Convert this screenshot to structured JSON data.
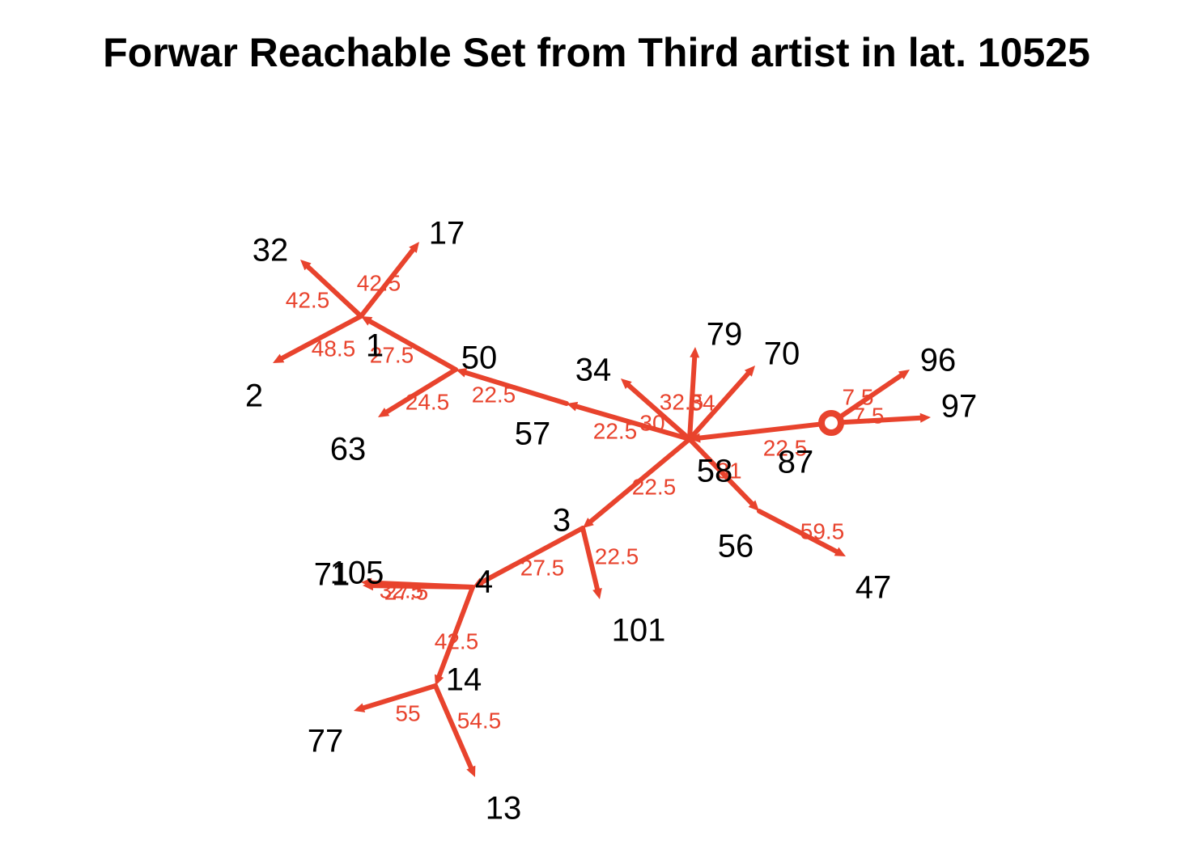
{
  "title": "Forwar Reachable Set from Third artist in lat. 10525",
  "colors": {
    "edge": "#E8432D",
    "edge_label": "#E8432D",
    "node_label": "#000000",
    "background": "#ffffff"
  },
  "nodes": [
    {
      "id": "87",
      "label": "87",
      "root": true
    },
    {
      "id": "96",
      "label": "96"
    },
    {
      "id": "97",
      "label": "97"
    },
    {
      "id": "58",
      "label": "58"
    },
    {
      "id": "79",
      "label": "79"
    },
    {
      "id": "70",
      "label": "70"
    },
    {
      "id": "34",
      "label": "34"
    },
    {
      "id": "57",
      "label": "57"
    },
    {
      "id": "50",
      "label": "50"
    },
    {
      "id": "1",
      "label": "1"
    },
    {
      "id": "63",
      "label": "63"
    },
    {
      "id": "32",
      "label": "32"
    },
    {
      "id": "17",
      "label": "17"
    },
    {
      "id": "2",
      "label": "2"
    },
    {
      "id": "3",
      "label": "3"
    },
    {
      "id": "101",
      "label": "101"
    },
    {
      "id": "4",
      "label": "4"
    },
    {
      "id": "71",
      "label": "71"
    },
    {
      "id": "105",
      "label": "105"
    },
    {
      "id": "14",
      "label": "14"
    },
    {
      "id": "77",
      "label": "77"
    },
    {
      "id": "13",
      "label": "13"
    },
    {
      "id": "56",
      "label": "56"
    },
    {
      "id": "47",
      "label": "47"
    }
  ],
  "edges": [
    {
      "from": "87",
      "to": "96",
      "label": "7.5"
    },
    {
      "from": "87",
      "to": "97",
      "label": "7.5"
    },
    {
      "from": "87",
      "to": "58",
      "label": "22.5"
    },
    {
      "from": "58",
      "to": "79",
      "label": "32.5"
    },
    {
      "from": "58",
      "to": "70",
      "label": "34"
    },
    {
      "from": "58",
      "to": "34",
      "label": "30"
    },
    {
      "from": "58",
      "to": "57",
      "label": "22.5"
    },
    {
      "from": "57",
      "to": "50",
      "label": "22.5"
    },
    {
      "from": "50",
      "to": "1",
      "label": "27.5"
    },
    {
      "from": "50",
      "to": "63",
      "label": "24.5"
    },
    {
      "from": "1",
      "to": "32",
      "label": "42.5"
    },
    {
      "from": "1",
      "to": "17",
      "label": "42.5"
    },
    {
      "from": "1",
      "to": "2",
      "label": "48.5"
    },
    {
      "from": "58",
      "to": "3",
      "label": "22.5"
    },
    {
      "from": "3",
      "to": "101",
      "label": "22.5"
    },
    {
      "from": "3",
      "to": "4",
      "label": "27.5"
    },
    {
      "from": "4",
      "to": "71",
      "label": "32.5"
    },
    {
      "from": "4",
      "to": "105",
      "label": "27.5"
    },
    {
      "from": "4",
      "to": "14",
      "label": "42.5"
    },
    {
      "from": "14",
      "to": "77",
      "label": "55"
    },
    {
      "from": "14",
      "to": "13",
      "label": "54.5"
    },
    {
      "from": "58",
      "to": "56",
      "label": "31"
    },
    {
      "from": "56",
      "to": "47",
      "label": "59.5"
    }
  ]
}
